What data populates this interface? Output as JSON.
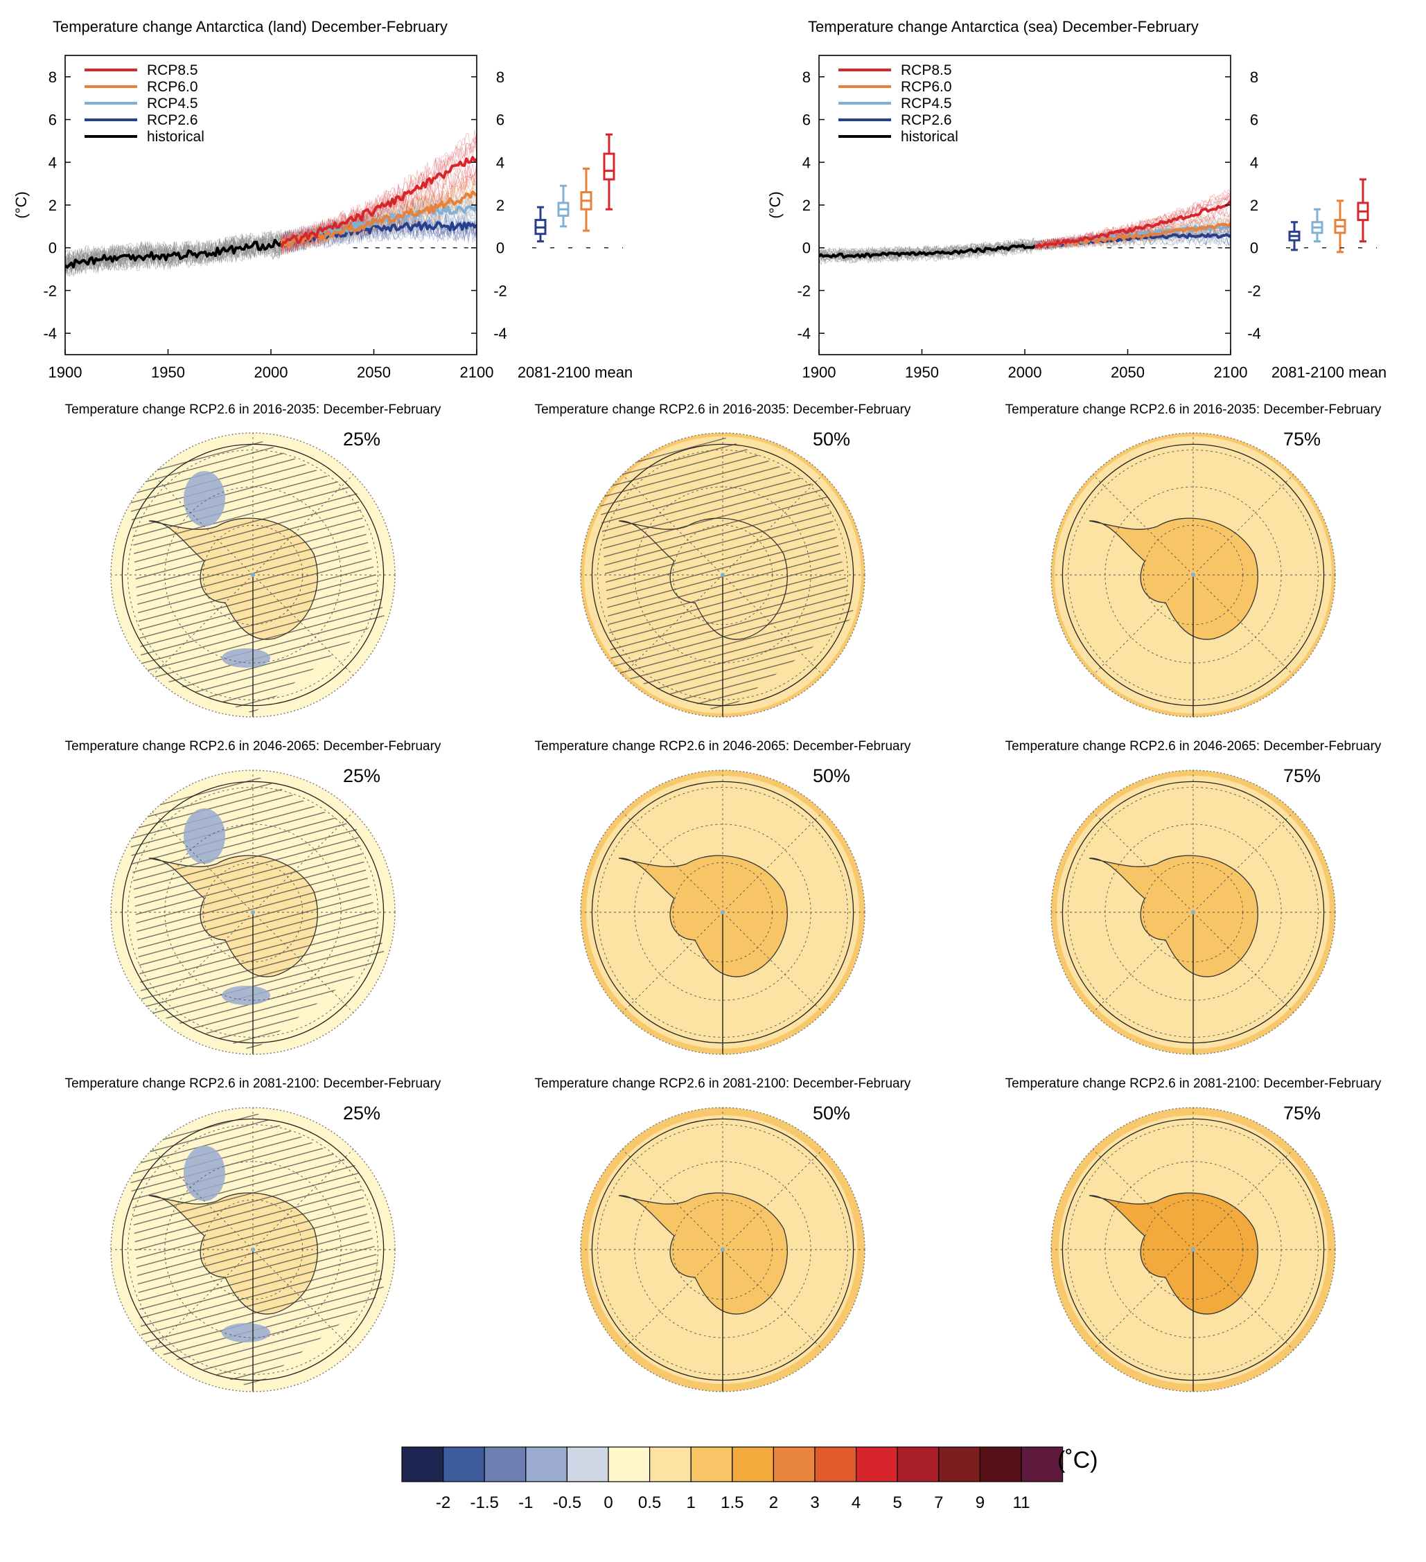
{
  "colors": {
    "rcp85": "#d7262b",
    "rcp60": "#e8803a",
    "rcp45": "#7fb0d6",
    "rcp26": "#283f8c",
    "historical": "#000000",
    "ensemble_hist": "#8a8a8a"
  },
  "chart_data": [
    {
      "type": "line",
      "title": "Temperature change Antarctica (land) December-February",
      "ylabel": "(°C)",
      "xlim": [
        1900,
        2100
      ],
      "ylim": [
        -5,
        9
      ],
      "x_ticks": [
        "1900",
        "1950",
        "2000",
        "2050",
        "2100"
      ],
      "y_ticks": [
        "-4",
        "-2",
        "0",
        "2",
        "4",
        "6",
        "8"
      ],
      "legend": [
        "RCP8.5",
        "RCP6.0",
        "RCP4.5",
        "RCP2.6",
        "historical"
      ],
      "legend_position": "top-left",
      "series": [
        {
          "name": "historical",
          "color": "#000000",
          "points": [
            [
              1900,
              -0.8
            ],
            [
              1910,
              -0.6
            ],
            [
              1920,
              -0.5
            ],
            [
              1930,
              -0.45
            ],
            [
              1940,
              -0.35
            ],
            [
              1950,
              -0.4
            ],
            [
              1960,
              -0.3
            ],
            [
              1970,
              -0.25
            ],
            [
              1980,
              -0.1
            ],
            [
              1990,
              0.05
            ],
            [
              2000,
              0.15
            ],
            [
              2005,
              0.2
            ]
          ]
        },
        {
          "name": "RCP2.6",
          "color": "#283f8c",
          "points": [
            [
              2005,
              0.2
            ],
            [
              2020,
              0.5
            ],
            [
              2040,
              0.8
            ],
            [
              2060,
              1.0
            ],
            [
              2080,
              1.0
            ],
            [
              2100,
              1.0
            ]
          ]
        },
        {
          "name": "RCP4.5",
          "color": "#7fb0d6",
          "points": [
            [
              2005,
              0.2
            ],
            [
              2020,
              0.55
            ],
            [
              2040,
              1.0
            ],
            [
              2060,
              1.4
            ],
            [
              2080,
              1.7
            ],
            [
              2100,
              1.9
            ]
          ]
        },
        {
          "name": "RCP6.0",
          "color": "#e8803a",
          "points": [
            [
              2005,
              0.2
            ],
            [
              2020,
              0.5
            ],
            [
              2040,
              0.9
            ],
            [
              2060,
              1.4
            ],
            [
              2080,
              1.9
            ],
            [
              2100,
              2.5
            ]
          ]
        },
        {
          "name": "RCP8.5",
          "color": "#d7262b",
          "points": [
            [
              2005,
              0.2
            ],
            [
              2020,
              0.6
            ],
            [
              2040,
              1.3
            ],
            [
              2060,
              2.2
            ],
            [
              2080,
              3.2
            ],
            [
              2100,
              4.3
            ]
          ]
        }
      ],
      "box_label": "2081-2100 mean",
      "boxes": [
        {
          "name": "RCP2.6",
          "color": "#283f8c",
          "min": 0.3,
          "q1": 0.65,
          "median": 0.95,
          "q3": 1.3,
          "max": 1.9
        },
        {
          "name": "RCP4.5",
          "color": "#7fb0d6",
          "min": 1.0,
          "q1": 1.5,
          "median": 1.8,
          "q3": 2.1,
          "max": 2.9
        },
        {
          "name": "RCP6.0",
          "color": "#e8803a",
          "min": 0.8,
          "q1": 1.8,
          "median": 2.2,
          "q3": 2.6,
          "max": 3.7
        },
        {
          "name": "RCP8.5",
          "color": "#d7262b",
          "min": 1.8,
          "q1": 3.2,
          "median": 3.6,
          "q3": 4.4,
          "max": 5.3
        }
      ]
    },
    {
      "type": "line",
      "title": "Temperature change Antarctica (sea) December-February",
      "ylabel": "(°C)",
      "xlim": [
        1900,
        2100
      ],
      "ylim": [
        -5,
        9
      ],
      "x_ticks": [
        "1900",
        "1950",
        "2000",
        "2050",
        "2100"
      ],
      "y_ticks": [
        "-4",
        "-2",
        "0",
        "2",
        "4",
        "6",
        "8"
      ],
      "legend": [
        "RCP8.5",
        "RCP6.0",
        "RCP4.5",
        "RCP2.6",
        "historical"
      ],
      "legend_position": "top-left",
      "series": [
        {
          "name": "historical",
          "color": "#000000",
          "points": [
            [
              1900,
              -0.4
            ],
            [
              1920,
              -0.35
            ],
            [
              1940,
              -0.3
            ],
            [
              1960,
              -0.25
            ],
            [
              1980,
              -0.1
            ],
            [
              2000,
              0.05
            ],
            [
              2005,
              0.1
            ]
          ]
        },
        {
          "name": "RCP2.6",
          "color": "#283f8c",
          "points": [
            [
              2005,
              0.1
            ],
            [
              2030,
              0.3
            ],
            [
              2060,
              0.5
            ],
            [
              2080,
              0.55
            ],
            [
              2100,
              0.55
            ]
          ]
        },
        {
          "name": "RCP4.5",
          "color": "#7fb0d6",
          "points": [
            [
              2005,
              0.1
            ],
            [
              2030,
              0.35
            ],
            [
              2060,
              0.7
            ],
            [
              2080,
              0.9
            ],
            [
              2100,
              1.0
            ]
          ]
        },
        {
          "name": "RCP6.0",
          "color": "#e8803a",
          "points": [
            [
              2005,
              0.1
            ],
            [
              2030,
              0.3
            ],
            [
              2060,
              0.6
            ],
            [
              2080,
              0.85
            ],
            [
              2100,
              1.1
            ]
          ]
        },
        {
          "name": "RCP8.5",
          "color": "#d7262b",
          "points": [
            [
              2005,
              0.1
            ],
            [
              2030,
              0.4
            ],
            [
              2060,
              1.0
            ],
            [
              2080,
              1.5
            ],
            [
              2100,
              2.1
            ]
          ]
        }
      ],
      "box_label": "2081-2100 mean",
      "boxes": [
        {
          "name": "RCP2.6",
          "color": "#283f8c",
          "min": -0.1,
          "q1": 0.35,
          "median": 0.55,
          "q3": 0.75,
          "max": 1.2
        },
        {
          "name": "RCP4.5",
          "color": "#7fb0d6",
          "min": 0.3,
          "q1": 0.7,
          "median": 0.95,
          "q3": 1.2,
          "max": 1.8
        },
        {
          "name": "RCP6.0",
          "color": "#e8803a",
          "min": -0.2,
          "q1": 0.7,
          "median": 1.0,
          "q3": 1.3,
          "max": 2.2
        },
        {
          "name": "RCP8.5",
          "color": "#d7262b",
          "min": 0.3,
          "q1": 1.3,
          "median": 1.7,
          "q3": 2.1,
          "max": 3.2
        }
      ]
    }
  ],
  "maps": [
    {
      "title": "Temperature change RCP2.6 in 2016-2035: December-February",
      "percentile": "25%"
    },
    {
      "title": "Temperature change RCP2.6 in 2016-2035: December-February",
      "percentile": "50%"
    },
    {
      "title": "Temperature change RCP2.6 in 2016-2035: December-February",
      "percentile": "75%"
    },
    {
      "title": "Temperature change RCP2.6 in 2046-2065: December-February",
      "percentile": "25%"
    },
    {
      "title": "Temperature change RCP2.6 in 2046-2065: December-February",
      "percentile": "50%"
    },
    {
      "title": "Temperature change RCP2.6 in 2046-2065: December-February",
      "percentile": "75%"
    },
    {
      "title": "Temperature change RCP2.6 in 2081-2100: December-February",
      "percentile": "25%"
    },
    {
      "title": "Temperature change RCP2.6 in 2081-2100: December-February",
      "percentile": "50%"
    },
    {
      "title": "Temperature change RCP2.6 in 2081-2100: December-February",
      "percentile": "75%"
    }
  ],
  "colorbar": {
    "unit": "(˚C)",
    "ticks": [
      "-2",
      "-1.5",
      "-1",
      "-0.5",
      "0",
      "0.5",
      "1",
      "1.5",
      "2",
      "3",
      "4",
      "5",
      "7",
      "9",
      "11"
    ],
    "colors": [
      "#1f2652",
      "#3e5b9c",
      "#6c80b4",
      "#9aaad0",
      "#cfd6e5",
      "#fff6cc",
      "#fde3a3",
      "#f7c566",
      "#f2aa3c",
      "#e9853f",
      "#e15a2c",
      "#d7262b",
      "#ab1f2a",
      "#7c1d1f",
      "#561015",
      "#5d1a3c"
    ]
  }
}
